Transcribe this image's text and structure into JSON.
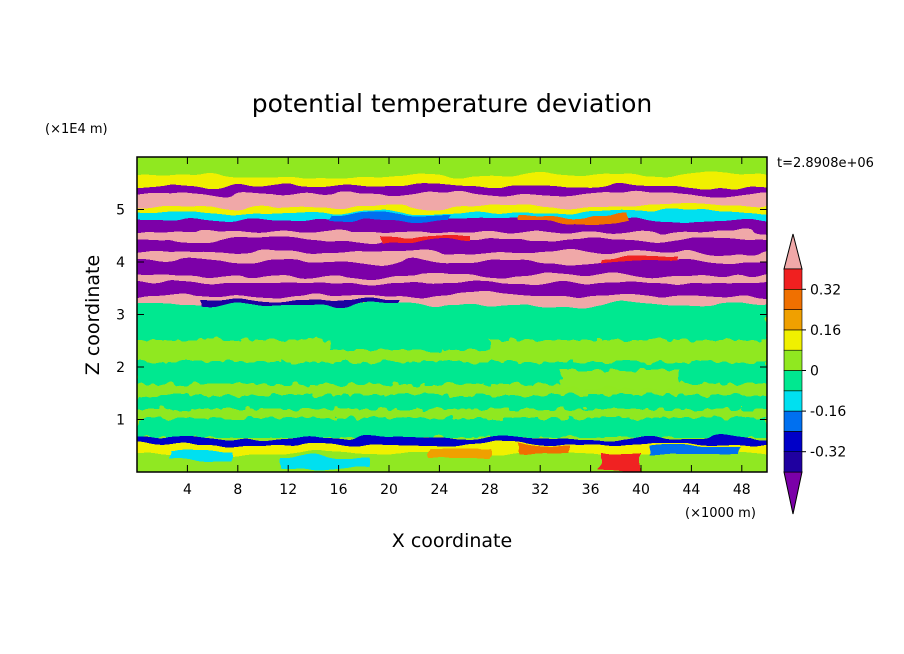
{
  "chart_data": {
    "type": "heatmap",
    "title": "potential temperature deviation",
    "xlabel": "X coordinate",
    "ylabel": "Z coordinate",
    "x_unit": "(×1000 m)",
    "y_unit": "(×1E4 m)",
    "time_label": "t=2.8908e+06",
    "xlim": [
      0,
      50
    ],
    "ylim": [
      0,
      6
    ],
    "x_ticks": [
      "4",
      "8",
      "12",
      "16",
      "20",
      "24",
      "28",
      "32",
      "36",
      "40",
      "44",
      "48"
    ],
    "y_ticks": [
      "1",
      "2",
      "3",
      "4",
      "5"
    ],
    "colorbar": {
      "tick_labels": [
        "0.32",
        "0.16",
        "0",
        "-0.16",
        "-0.32"
      ],
      "tick_values": [
        0.32,
        0.16,
        0,
        -0.16,
        -0.32
      ],
      "levels": [
        -0.4,
        -0.32,
        -0.24,
        -0.16,
        -0.08,
        0,
        0.08,
        0.16,
        0.24,
        0.32,
        0.4
      ],
      "colors": [
        "#7b00a8",
        "#1f00a0",
        "#0000c8",
        "#0070f0",
        "#00e0f0",
        "#00e890",
        "#90e820",
        "#f0f000",
        "#f0a000",
        "#f07000",
        "#f02020",
        "#f0a8a8"
      ]
    },
    "bands": [
      {
        "z": [
          0,
          0.6
        ],
        "color": "#90e820"
      },
      {
        "z": [
          0.6,
          3.2
        ],
        "color": "#90e820"
      },
      {
        "z": [
          3.2,
          5.3
        ],
        "color": "#7b00a8"
      },
      {
        "z": [
          5.3,
          6
        ],
        "color": "#90e820"
      }
    ]
  }
}
